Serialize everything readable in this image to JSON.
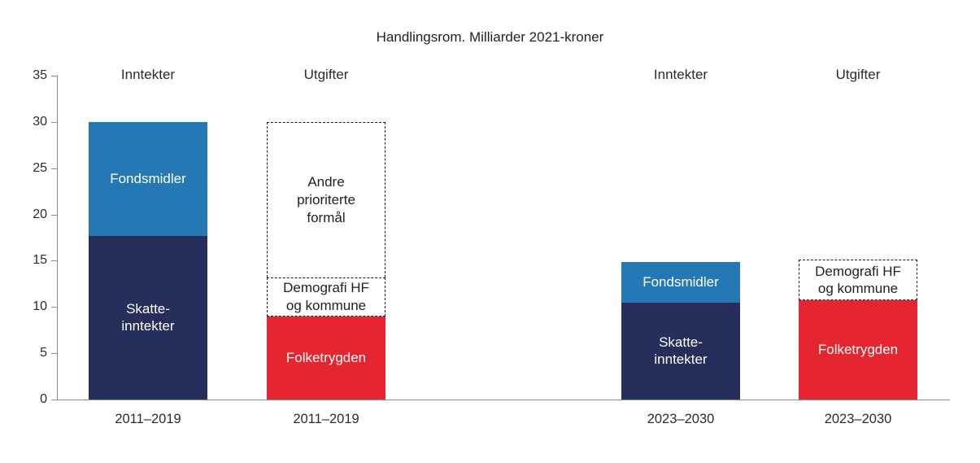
{
  "title": "Handlingsrom. Milliarder 2021-kroner",
  "colors": {
    "navy": "#262f5c",
    "blue": "#2479b5",
    "red": "#e5252f",
    "axis": "#8c8c8c",
    "text": "#231f20"
  },
  "chart_data": {
    "type": "bar",
    "stacked": true,
    "title": "Handlingsrom. Milliarder 2021-kroner",
    "ylabel": "",
    "xlabel": "",
    "ylim": [
      0,
      35
    ],
    "yticks": [
      0,
      5,
      10,
      15,
      20,
      25,
      30,
      35
    ],
    "grid": false,
    "legend": "none (labels inside segments)",
    "bars": [
      {
        "category": "2011–2019",
        "header": "Inntekter",
        "segments": [
          {
            "name": "Skatte-\ninntekter",
            "value": 17.7,
            "style": "navy"
          },
          {
            "name": "Fondsmidler",
            "value": 12.3,
            "style": "blue"
          }
        ],
        "total": 30
      },
      {
        "category": "2011–2019",
        "header": "Utgifter",
        "segments": [
          {
            "name": "Folketrygden",
            "value": 9.0,
            "style": "red"
          },
          {
            "name": "Demografi HF\nog kommune",
            "value": 4.2,
            "style": "dashed"
          },
          {
            "name": "Andre\nprioriterte\nformål",
            "value": 16.8,
            "style": "dashed"
          }
        ],
        "total": 30
      },
      {
        "category": "2023–2030",
        "header": "Inntekter",
        "segments": [
          {
            "name": "Skatte-\ninntekter",
            "value": 10.5,
            "style": "navy"
          },
          {
            "name": "Fondsmidler",
            "value": 4.4,
            "style": "blue"
          }
        ],
        "total": 14.9
      },
      {
        "category": "2023–2030",
        "header": "Utgifter",
        "segments": [
          {
            "name": "Folketrygden",
            "value": 10.7,
            "style": "red"
          },
          {
            "name": "Demografi HF\nog kommune",
            "value": 4.4,
            "style": "dashed"
          }
        ],
        "total": 15.1
      }
    ]
  }
}
